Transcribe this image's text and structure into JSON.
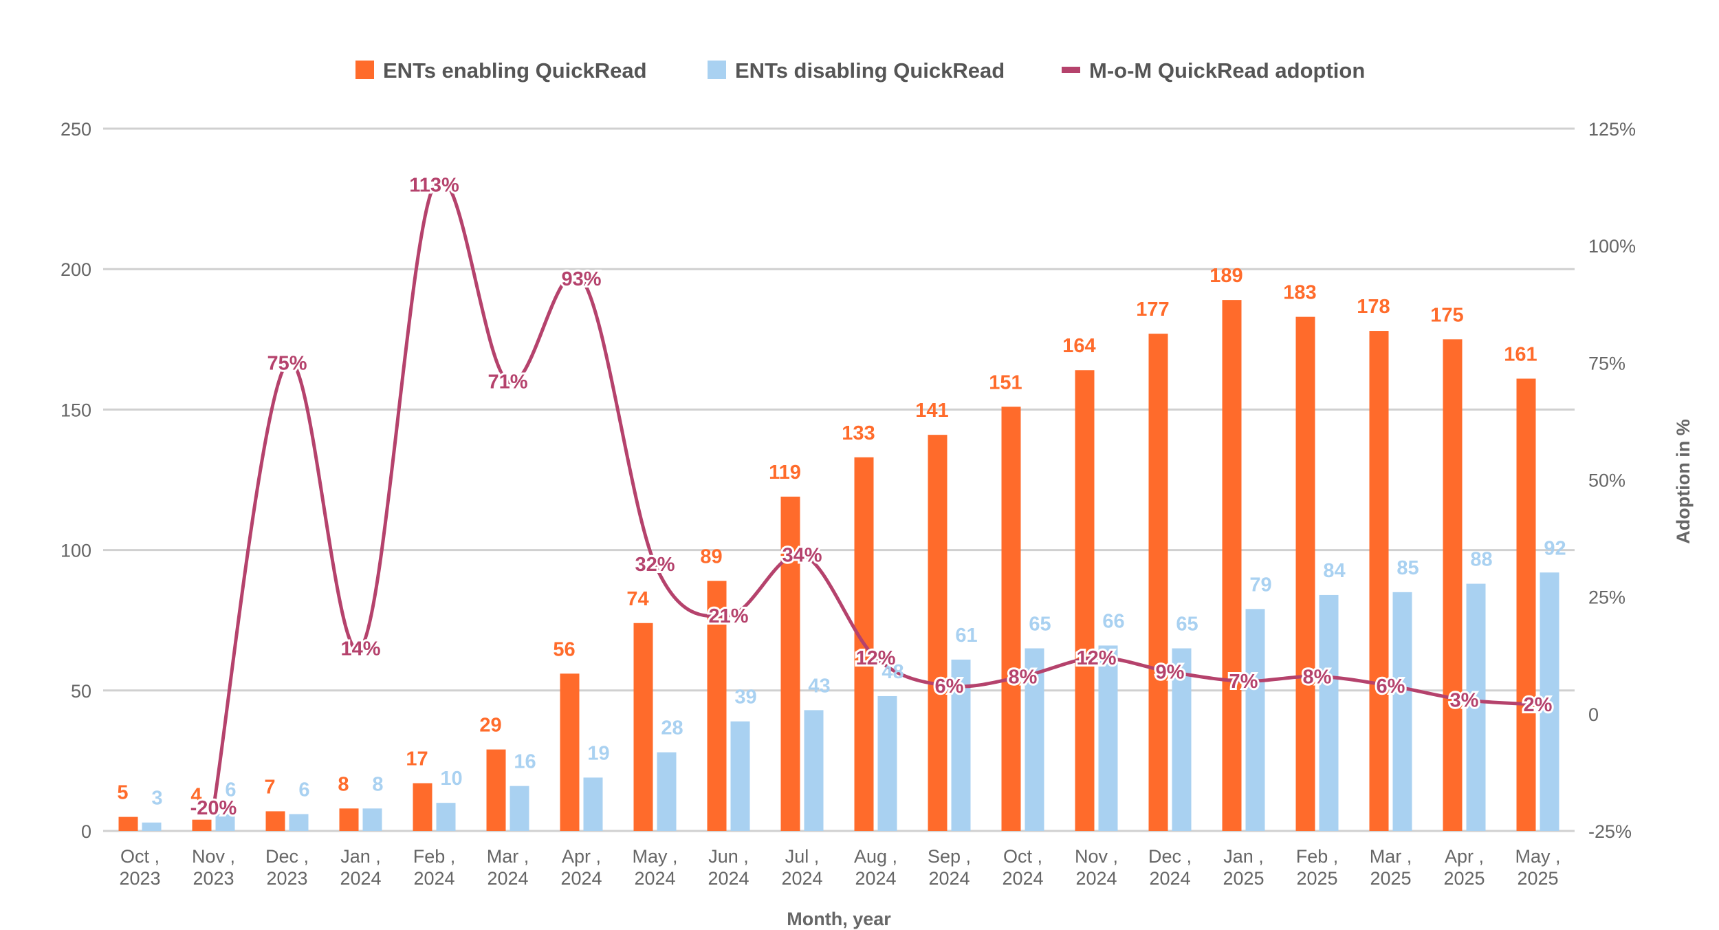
{
  "chart_data": {
    "type": "bar",
    "title": "",
    "xlabel": "Month, year",
    "ylabel": "",
    "y2label": "Adoption in %",
    "ylim": [
      0,
      250
    ],
    "yticks": [
      "0",
      "50",
      "100",
      "150",
      "200",
      "250"
    ],
    "y2lim": [
      -25,
      125
    ],
    "y2ticks": [
      "-25%",
      "0",
      "25%",
      "50%",
      "75%",
      "100%",
      "125%"
    ],
    "categories": [
      [
        "Oct ,",
        "2023"
      ],
      [
        "Nov ,",
        "2023"
      ],
      [
        "Dec ,",
        "2023"
      ],
      [
        "Jan ,",
        "2024"
      ],
      [
        "Feb ,",
        "2024"
      ],
      [
        "Mar ,",
        "2024"
      ],
      [
        "Apr ,",
        "2024"
      ],
      [
        "May ,",
        "2024"
      ],
      [
        "Jun ,",
        "2024"
      ],
      [
        "Jul ,",
        "2024"
      ],
      [
        "Aug ,",
        "2024"
      ],
      [
        "Sep ,",
        "2024"
      ],
      [
        "Oct ,",
        "2024"
      ],
      [
        "Nov ,",
        "2024"
      ],
      [
        "Dec ,",
        "2024"
      ],
      [
        "Jan ,",
        "2025"
      ],
      [
        "Feb ,",
        "2025"
      ],
      [
        "Mar ,",
        "2025"
      ],
      [
        "Apr ,",
        "2025"
      ],
      [
        "May ,",
        "2025"
      ]
    ],
    "series": [
      {
        "name": "ENTs enabling QuickRead",
        "kind": "bar",
        "axis": "left",
        "color": "#ff6b2b",
        "values": [
          5,
          4,
          7,
          8,
          17,
          29,
          56,
          74,
          89,
          119,
          133,
          141,
          151,
          164,
          177,
          189,
          183,
          178,
          175,
          161
        ],
        "labels": [
          "5",
          "4",
          "7",
          "8",
          "17",
          "29",
          "56",
          "74",
          "89",
          "119",
          "133",
          "141",
          "151",
          "164",
          "177",
          "189",
          "183",
          "178",
          "175",
          "161"
        ]
      },
      {
        "name": "ENTs disabling QuickRead",
        "kind": "bar",
        "axis": "left",
        "color": "#a9d1f1",
        "values": [
          3,
          6,
          6,
          8,
          10,
          16,
          19,
          28,
          39,
          43,
          48,
          61,
          65,
          66,
          65,
          79,
          84,
          85,
          88,
          92
        ],
        "labels": [
          "3",
          "6",
          "6",
          "8",
          "10",
          "16",
          "19",
          "28",
          "39",
          "43",
          "48",
          "61",
          "65",
          "66",
          "65",
          "79",
          "84",
          "85",
          "88",
          "92"
        ]
      },
      {
        "name": "M-o-M QuickRead adoption",
        "kind": "line",
        "axis": "right",
        "color": "#b5426c",
        "values": [
          null,
          -20,
          75,
          14,
          113,
          71,
          93,
          32,
          21,
          34,
          12,
          6,
          8,
          12,
          9,
          7,
          8,
          6,
          3,
          2
        ],
        "labels": [
          "",
          "-20%",
          "75%",
          "14%",
          "113%",
          "71%",
          "93%",
          "32%",
          "21%",
          "34%",
          "12%",
          "6%",
          "8%",
          "12%",
          "9%",
          "7%",
          "8%",
          "6%",
          "3%",
          "2%"
        ]
      }
    ],
    "legend_position": "top-center",
    "grid": true
  }
}
